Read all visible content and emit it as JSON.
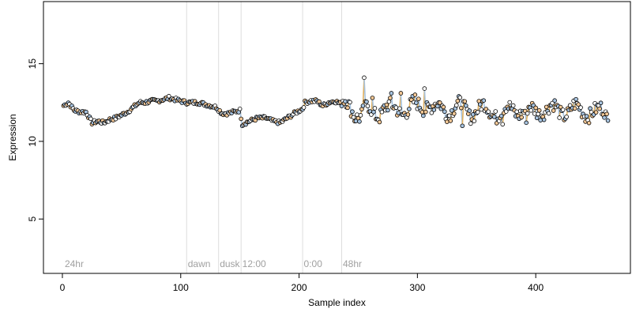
{
  "chart_data": {
    "type": "scatter",
    "xlabel": "Sample index",
    "ylabel": "Expression",
    "xlim": [
      -16,
      480
    ],
    "ylim": [
      1.5,
      19
    ],
    "xticks": [
      0,
      100,
      200,
      300,
      400
    ],
    "yticks": [
      5,
      10,
      15
    ],
    "grid": false,
    "sections": [
      {
        "label": "24hr",
        "x": 2
      },
      {
        "label": "dawn",
        "x": 106
      },
      {
        "label": "dusk",
        "x": 133
      },
      {
        "label": "12:00",
        "x": 152
      },
      {
        "label": "0:00",
        "x": 204
      },
      {
        "label": "48hr",
        "x": 237
      }
    ],
    "boundaries": [
      105,
      132,
      151,
      203,
      236
    ],
    "colors": {
      "line_blue": "#a8c4e0",
      "line_orange": "#e0b060",
      "point_blue": "#a8c4e0",
      "point_orange": "#f4c896",
      "divider": "#dddddd"
    },
    "anchors": [
      [
        1,
        12.3
      ],
      [
        5,
        12.5
      ],
      [
        10,
        12.0
      ],
      [
        15,
        11.9
      ],
      [
        20,
        11.9
      ],
      [
        25,
        11.2
      ],
      [
        30,
        11.3
      ],
      [
        35,
        11.2
      ],
      [
        40,
        11.4
      ],
      [
        45,
        11.5
      ],
      [
        50,
        11.7
      ],
      [
        55,
        11.9
      ],
      [
        60,
        12.2
      ],
      [
        65,
        12.5
      ],
      [
        70,
        12.5
      ],
      [
        75,
        12.6
      ],
      [
        80,
        12.6
      ],
      [
        85,
        12.7
      ],
      [
        90,
        12.8
      ],
      [
        95,
        12.7
      ],
      [
        100,
        12.6
      ],
      [
        105,
        12.5
      ],
      [
        110,
        12.5
      ],
      [
        115,
        12.5
      ],
      [
        120,
        12.4
      ],
      [
        125,
        12.3
      ],
      [
        130,
        12.2
      ],
      [
        135,
        11.8
      ],
      [
        140,
        11.8
      ],
      [
        145,
        11.9
      ],
      [
        150,
        12.0
      ],
      [
        152,
        11.1
      ],
      [
        158,
        11.3
      ],
      [
        165,
        11.5
      ],
      [
        172,
        11.5
      ],
      [
        178,
        11.3
      ],
      [
        184,
        11.2
      ],
      [
        190,
        11.5
      ],
      [
        196,
        11.8
      ],
      [
        203,
        12.1
      ],
      [
        205,
        12.5
      ],
      [
        210,
        12.6
      ],
      [
        215,
        12.6
      ],
      [
        220,
        12.3
      ],
      [
        225,
        12.5
      ],
      [
        230,
        12.6
      ],
      [
        236,
        12.4
      ],
      [
        240,
        12.3
      ],
      [
        246,
        12.0
      ],
      [
        252,
        11.7
      ],
      [
        258,
        12.0
      ],
      [
        262,
        11.8
      ],
      [
        268,
        11.9
      ],
      [
        272,
        12.2
      ],
      [
        278,
        12.0
      ],
      [
        284,
        12.1
      ],
      [
        290,
        12.0
      ],
      [
        296,
        12.2
      ],
      [
        302,
        12.3
      ],
      [
        308,
        12.4
      ],
      [
        314,
        12.1
      ],
      [
        320,
        12.2
      ],
      [
        326,
        12.0
      ],
      [
        332,
        12.2
      ],
      [
        338,
        12.1
      ],
      [
        344,
        11.9
      ],
      [
        350,
        12.0
      ],
      [
        356,
        12.1
      ],
      [
        362,
        12.0
      ],
      [
        368,
        11.8
      ],
      [
        374,
        11.9
      ],
      [
        380,
        12.1
      ],
      [
        386,
        12.0
      ],
      [
        392,
        11.8
      ],
      [
        398,
        12.0
      ],
      [
        404,
        12.1
      ],
      [
        410,
        12.0
      ],
      [
        416,
        12.1
      ],
      [
        422,
        12.0
      ],
      [
        428,
        11.9
      ],
      [
        434,
        12.1
      ],
      [
        440,
        12.0
      ],
      [
        446,
        11.9
      ],
      [
        452,
        11.8
      ],
      [
        458,
        12.0
      ],
      [
        461,
        11.5
      ]
    ],
    "outliers": [
      [
        255,
        14.1
      ],
      [
        286,
        13.1
      ],
      [
        306,
        13.4
      ],
      [
        262,
        12.8
      ],
      [
        278,
        13.1
      ],
      [
        298,
        13.0
      ],
      [
        247,
        11.3
      ],
      [
        338,
        11.0
      ],
      [
        372,
        11.1
      ],
      [
        392,
        11.2
      ]
    ]
  }
}
